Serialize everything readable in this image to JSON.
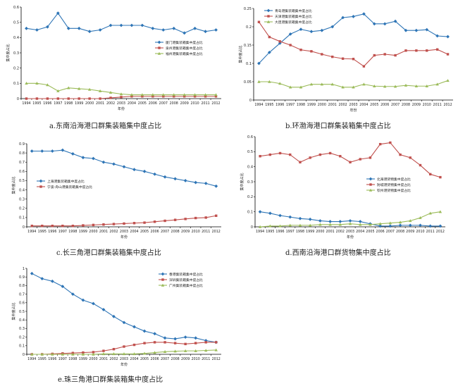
{
  "chart_data": [
    {
      "id": "a",
      "type": "line",
      "caption": "a.东南沿海港口群集装箱集中度占比",
      "xlabel": "年份",
      "ylabel": "集中度占比",
      "x": [
        "1994",
        "1995",
        "1996",
        "1997",
        "1998",
        "1999",
        "2000",
        "2001",
        "2002",
        "2003",
        "2004",
        "2005",
        "2006",
        "2007",
        "2008",
        "2009",
        "2010",
        "2011",
        "2012"
      ],
      "ylim": [
        0,
        0.6
      ],
      "yticks": [
        "0",
        "0.1",
        "0.2",
        "0.3",
        "0.4",
        "0.5",
        "0.6"
      ],
      "legend_position": "right",
      "series": [
        {
          "name": "厦门港集装箱集中度占比",
          "color": "#2e75b6",
          "marker": "diamond",
          "values": [
            0.46,
            0.45,
            0.47,
            0.56,
            0.46,
            0.46,
            0.44,
            0.45,
            0.48,
            0.48,
            0.48,
            0.48,
            0.46,
            0.45,
            0.46,
            0.43,
            0.46,
            0.44,
            0.45
          ]
        },
        {
          "name": "泉州港集装箱集中度占比",
          "color": "#c0504d",
          "marker": "square",
          "values": [
            0.0,
            0.0,
            0.0,
            0.0,
            0.0,
            0.0,
            0.0,
            0.0,
            0.005,
            0.01,
            0.015,
            0.015,
            0.015,
            0.015,
            0.015,
            0.015,
            0.015,
            0.015,
            0.015
          ]
        },
        {
          "name": "福州港集装箱集中度占比",
          "color": "#9bbb59",
          "marker": "triangle",
          "values": [
            0.1,
            0.1,
            0.09,
            0.05,
            0.07,
            0.065,
            0.06,
            0.05,
            0.04,
            0.03,
            0.025,
            0.025,
            0.025,
            0.025,
            0.025,
            0.025,
            0.025,
            0.025,
            0.025
          ]
        }
      ]
    },
    {
      "id": "b",
      "type": "line",
      "caption": "b.环渤海港口群集装箱集中度占比",
      "xlabel": "年份",
      "ylabel": "集中度占比",
      "x": [
        "1994",
        "1995",
        "1996",
        "1997",
        "1998",
        "1999",
        "2000",
        "2001",
        "2002",
        "2003",
        "2004",
        "2005",
        "2006",
        "2007",
        "2008",
        "2009",
        "2010",
        "2011",
        "2012"
      ],
      "ylim": [
        0,
        0.25
      ],
      "yticks": [
        "0",
        "0.05",
        "0.1",
        "0.15",
        "0.2",
        "0.25"
      ],
      "legend_position": "top-left",
      "series": [
        {
          "name": "青岛港集装箱集中度占比",
          "color": "#2e75b6",
          "marker": "diamond",
          "values": [
            0.1,
            0.13,
            0.155,
            0.18,
            0.193,
            0.187,
            0.19,
            0.2,
            0.225,
            0.228,
            0.235,
            0.208,
            0.208,
            0.215,
            0.19,
            0.19,
            0.192,
            0.175,
            0.173
          ]
        },
        {
          "name": "天津港集装箱集中度占比",
          "color": "#c0504d",
          "marker": "square",
          "values": [
            0.213,
            0.172,
            0.16,
            0.15,
            0.137,
            0.133,
            0.125,
            0.118,
            0.113,
            0.112,
            0.092,
            0.122,
            0.125,
            0.122,
            0.135,
            0.135,
            0.135,
            0.138,
            0.125
          ]
        },
        {
          "name": "大连港集装箱集中度占比",
          "color": "#9bbb59",
          "marker": "triangle",
          "values": [
            0.05,
            0.05,
            0.045,
            0.035,
            0.035,
            0.043,
            0.043,
            0.043,
            0.035,
            0.035,
            0.043,
            0.038,
            0.037,
            0.037,
            0.04,
            0.038,
            0.038,
            0.043,
            0.053
          ]
        }
      ]
    },
    {
      "id": "c",
      "type": "line",
      "caption": "c.长三角港口群集装箱集中度占比",
      "xlabel": "年份",
      "ylabel": "集中度占比",
      "x": [
        "1994",
        "1995",
        "1996",
        "1997",
        "1998",
        "1999",
        "2000",
        "2001",
        "2002",
        "2003",
        "2004",
        "2005",
        "2006",
        "2007",
        "2008",
        "2009",
        "2010",
        "2011",
        "2012"
      ],
      "ylim": [
        0,
        0.9
      ],
      "yticks": [
        "0",
        "0.1",
        "0.2",
        "0.3",
        "0.4",
        "0.5",
        "0.6",
        "0.7",
        "0.8",
        "0.9"
      ],
      "legend_position": "left",
      "series": [
        {
          "name": "上海港集装箱集中度占比",
          "color": "#2e75b6",
          "marker": "diamond",
          "values": [
            0.82,
            0.82,
            0.82,
            0.83,
            0.79,
            0.75,
            0.74,
            0.7,
            0.68,
            0.65,
            0.62,
            0.6,
            0.57,
            0.54,
            0.52,
            0.5,
            0.48,
            0.47,
            0.44
          ]
        },
        {
          "name": "宁波-舟山港集装箱集中度占比",
          "color": "#c0504d",
          "marker": "square",
          "values": [
            0.01,
            0.01,
            0.01,
            0.01,
            0.01,
            0.015,
            0.02,
            0.025,
            0.03,
            0.035,
            0.04,
            0.045,
            0.055,
            0.065,
            0.075,
            0.085,
            0.095,
            0.1,
            0.12
          ]
        }
      ]
    },
    {
      "id": "d",
      "type": "line",
      "caption": "d.西南沿海港口群货物集中度占比",
      "xlabel": "年份",
      "ylabel": "集中度占比",
      "x": [
        "1994",
        "1995",
        "1996",
        "1997",
        "1998",
        "1999",
        "2000",
        "2001",
        "2002",
        "2003",
        "2004",
        "2005",
        "2006",
        "2007",
        "2008",
        "2009",
        "2010",
        "2011",
        "2012"
      ],
      "ylim": [
        0,
        0.6
      ],
      "yticks": [
        "0",
        "0.1",
        "0.2",
        "0.3",
        "0.4",
        "0.5",
        "0.6"
      ],
      "legend_position": "left",
      "series": [
        {
          "name": "北海港货物集中度占比",
          "color": "#2e75b6",
          "marker": "diamond",
          "values": [
            0.1,
            0.09,
            0.075,
            0.065,
            0.055,
            0.05,
            0.04,
            0.035,
            0.035,
            0.04,
            0.035,
            0.02,
            0.005,
            0.005,
            0.01,
            0.01,
            0.01,
            0.005,
            0.005
          ]
        },
        {
          "name": "防城港货物集中度占比",
          "color": "#c0504d",
          "marker": "square",
          "values": [
            0.47,
            0.48,
            0.49,
            0.48,
            0.43,
            0.46,
            0.48,
            0.49,
            0.47,
            0.43,
            0.45,
            0.46,
            0.55,
            0.56,
            0.48,
            0.46,
            0.41,
            0.35,
            0.33
          ]
        },
        {
          "name": "钦州港货物集中度占比",
          "color": "#9bbb59",
          "marker": "triangle",
          "values": [
            0.0,
            0.005,
            0.005,
            0.01,
            0.01,
            0.01,
            0.015,
            0.015,
            0.015,
            0.02,
            0.015,
            0.015,
            0.02,
            0.025,
            0.03,
            0.04,
            0.06,
            0.09,
            0.1
          ]
        }
      ]
    },
    {
      "id": "e",
      "type": "line",
      "caption": "e.珠三角港口群集装箱集中度占比",
      "xlabel": "年份",
      "ylabel": "集中度占比",
      "x": [
        "1994",
        "1995",
        "1996",
        "1997",
        "1998",
        "1999",
        "2000",
        "2001",
        "2002",
        "2003",
        "2004",
        "2005",
        "2006",
        "2007",
        "2008",
        "2009",
        "2010",
        "2011",
        "2012"
      ],
      "ylim": [
        0,
        1
      ],
      "yticks": [
        "0",
        "0.1",
        "0.2",
        "0.3",
        "0.4",
        "0.5",
        "0.6",
        "0.7",
        "0.8",
        "0.9",
        "1"
      ],
      "legend_position": "top-right",
      "series": [
        {
          "name": "香港集装箱集中度占比",
          "color": "#2e75b6",
          "marker": "diamond",
          "values": [
            0.94,
            0.88,
            0.85,
            0.79,
            0.7,
            0.63,
            0.59,
            0.52,
            0.44,
            0.37,
            0.32,
            0.27,
            0.24,
            0.19,
            0.18,
            0.2,
            0.19,
            0.16,
            0.14
          ]
        },
        {
          "name": "深圳集装箱集中度占比",
          "color": "#c0504d",
          "marker": "square",
          "values": [
            0.0,
            0.0,
            0.005,
            0.01,
            0.015,
            0.02,
            0.025,
            0.04,
            0.06,
            0.09,
            0.11,
            0.13,
            0.14,
            0.14,
            0.13,
            0.12,
            0.13,
            0.14,
            0.14
          ]
        },
        {
          "name": "广州集装箱集中度占比",
          "color": "#9bbb59",
          "marker": "triangle",
          "values": [
            0.0,
            0.0,
            0.0,
            0.0,
            0.0,
            0.0,
            0.0,
            0.005,
            0.005,
            0.005,
            0.005,
            0.01,
            0.02,
            0.03,
            0.035,
            0.04,
            0.04,
            0.045,
            0.05
          ]
        }
      ]
    }
  ]
}
